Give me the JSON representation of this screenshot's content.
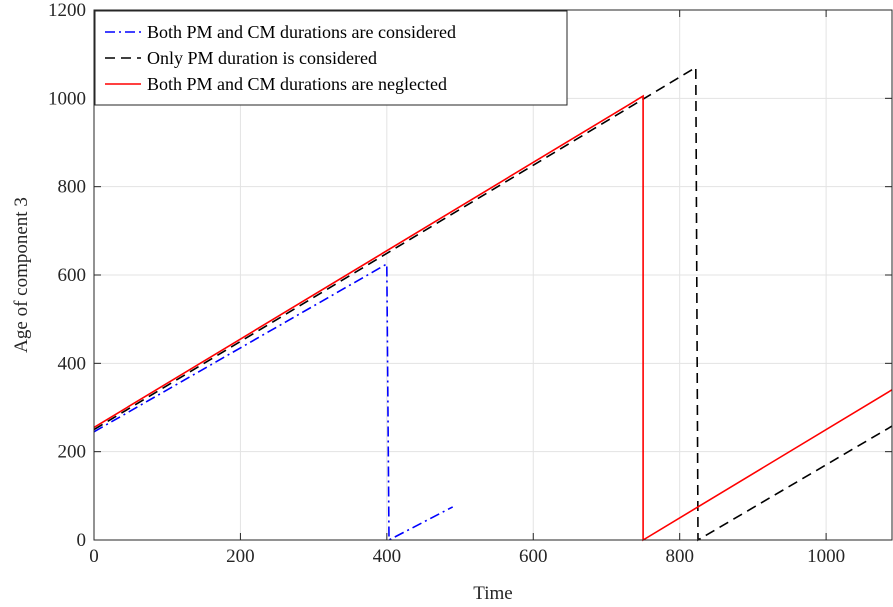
{
  "chart_data": {
    "type": "line",
    "title": "",
    "xlabel": "Time",
    "ylabel": "Age of component 3",
    "xlim": [
      0,
      1090
    ],
    "ylim": [
      0,
      1200
    ],
    "xticks": [
      0,
      200,
      400,
      600,
      800,
      1000
    ],
    "yticks": [
      0,
      200,
      400,
      600,
      800,
      1000,
      1200
    ],
    "grid": true,
    "legend_position": "top-left",
    "series": [
      {
        "name": "Both PM and CM durations are considered",
        "color": "#0000ff",
        "dash": "dashdot",
        "x": [
          0,
          400,
          400,
          403,
          403,
          490
        ],
        "y": [
          245,
          625,
          625,
          0,
          0,
          75
        ]
      },
      {
        "name": "Only PM duration is considered",
        "color": "#000000",
        "dash": "dashed",
        "x": [
          0,
          822,
          822,
          825,
          825,
          1090
        ],
        "y": [
          250,
          1070,
          1070,
          0,
          0,
          258
        ]
      },
      {
        "name": "Both PM and CM durations are neglected",
        "color": "#ff0000",
        "dash": "solid",
        "x": [
          0,
          750,
          750,
          750,
          1090
        ],
        "y": [
          255,
          1005,
          0,
          0,
          340
        ]
      }
    ]
  }
}
